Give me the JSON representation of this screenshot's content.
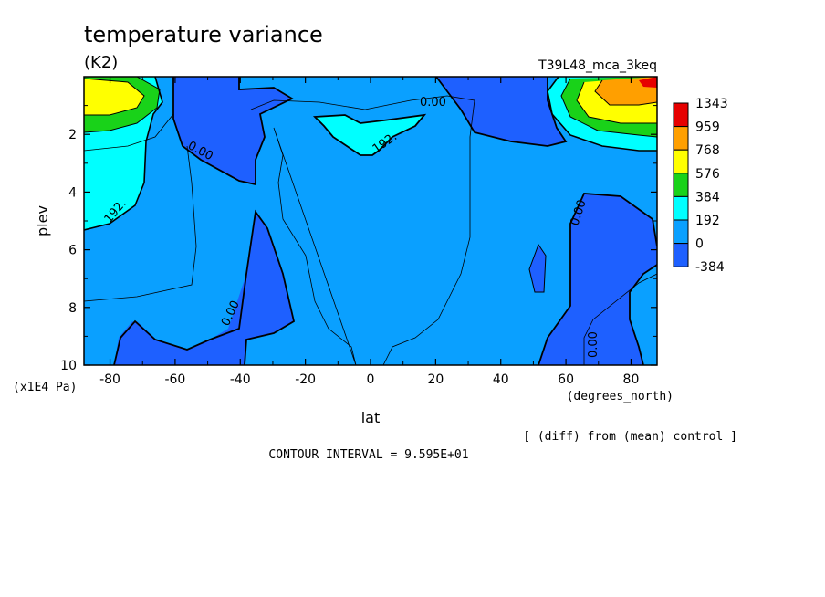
{
  "chart_data": {
    "type": "heatmap",
    "title": "temperature variance",
    "units": "(K2)",
    "experiment": "T39L48_mca_3keq",
    "xlabel": "lat",
    "xunits": "(degrees_north)",
    "ylabel": "plev",
    "yunits": "(x1E4 Pa)",
    "x_ticks": [
      "-80",
      "-60",
      "-40",
      "-20",
      "0",
      "20",
      "40",
      "60",
      "80"
    ],
    "y_ticks": [
      "2",
      "4",
      "6",
      "8",
      "10"
    ],
    "xlim": [
      -88,
      88
    ],
    "ylim": [
      10,
      0
    ],
    "colorbar": {
      "levels": [
        "1343",
        "959",
        "768",
        "576",
        "384",
        "192",
        "0",
        "-384"
      ],
      "colors": [
        "#e60000",
        "#ff9f00",
        "#ffff00",
        "#19d219",
        "#00ffff",
        "#0aa0ff",
        "#1e60ff"
      ]
    },
    "contour_labels": [
      "0.00",
      "0.00",
      "0.00",
      "0.00",
      "0.00",
      "192.",
      "192."
    ],
    "note": "[ (diff) from (mean) control ]",
    "contour_interval": "CONTOUR INTERVAL = 9.595E+01"
  }
}
